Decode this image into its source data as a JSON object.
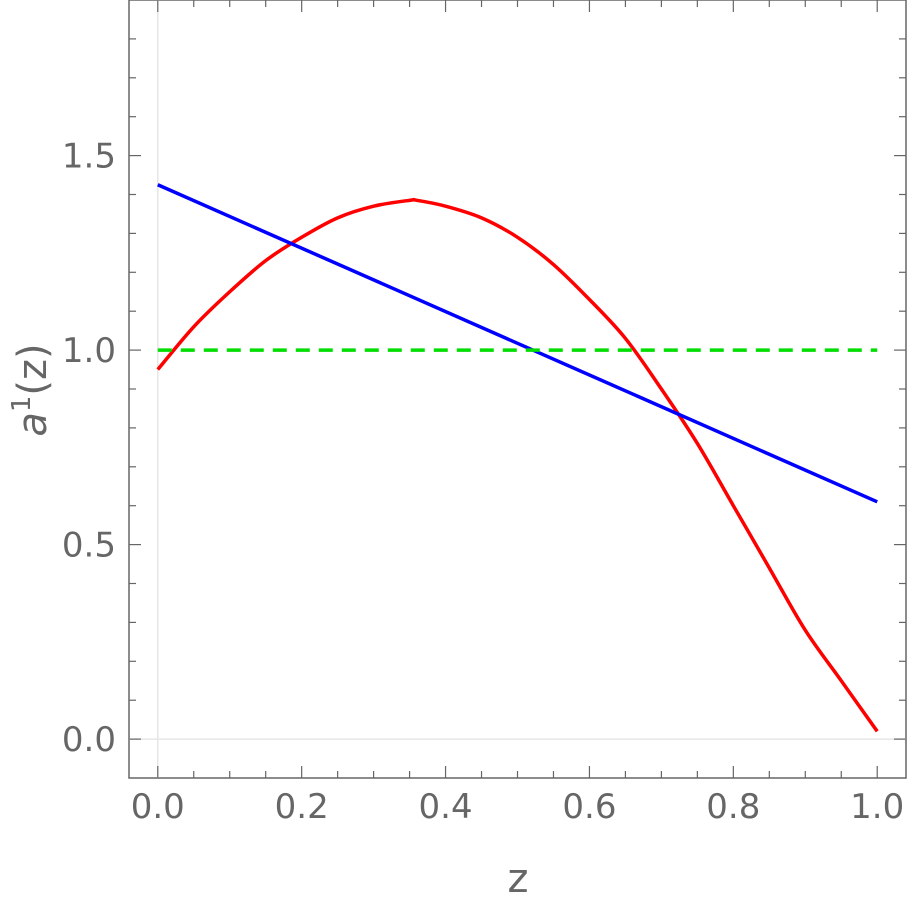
{
  "chart_data": {
    "type": "line",
    "xlabel": "z",
    "ylabel": {
      "base": "a",
      "sup": "1",
      "rest": "(z)"
    },
    "xlim": [
      -0.04,
      1.04
    ],
    "ylim": [
      -0.1,
      1.9
    ],
    "xticks": [
      0.0,
      0.2,
      0.4,
      0.6,
      0.8,
      1.0
    ],
    "xtick_labels": [
      "0.0",
      "0.2",
      "0.4",
      "0.6",
      "0.8",
      "1.0"
    ],
    "yticks": [
      0.0,
      0.5,
      1.0,
      1.5
    ],
    "ytick_labels": [
      "0.0",
      "0.5",
      "1.0",
      "1.5"
    ],
    "grid": false,
    "legend": "none",
    "series": [
      {
        "color": "#ff0000",
        "style": "solid",
        "x": [
          0.0,
          0.05,
          0.1,
          0.15,
          0.2,
          0.25,
          0.3,
          0.35,
          0.36,
          0.4,
          0.45,
          0.5,
          0.55,
          0.6,
          0.65,
          0.7,
          0.75,
          0.8,
          0.85,
          0.9,
          0.95,
          1.0
        ],
        "y": [
          0.95,
          1.06,
          1.15,
          1.23,
          1.29,
          1.34,
          1.37,
          1.385,
          1.385,
          1.37,
          1.34,
          1.29,
          1.22,
          1.13,
          1.03,
          0.9,
          0.76,
          0.6,
          0.44,
          0.28,
          0.15,
          0.02
        ]
      },
      {
        "color": "#0000ff",
        "style": "solid",
        "x": [
          0.0,
          1.0
        ],
        "y": [
          1.425,
          0.61
        ]
      },
      {
        "color": "#00dd00",
        "style": "dashed",
        "x": [
          0.0,
          1.0
        ],
        "y": [
          1.0,
          1.0
        ]
      }
    ]
  }
}
